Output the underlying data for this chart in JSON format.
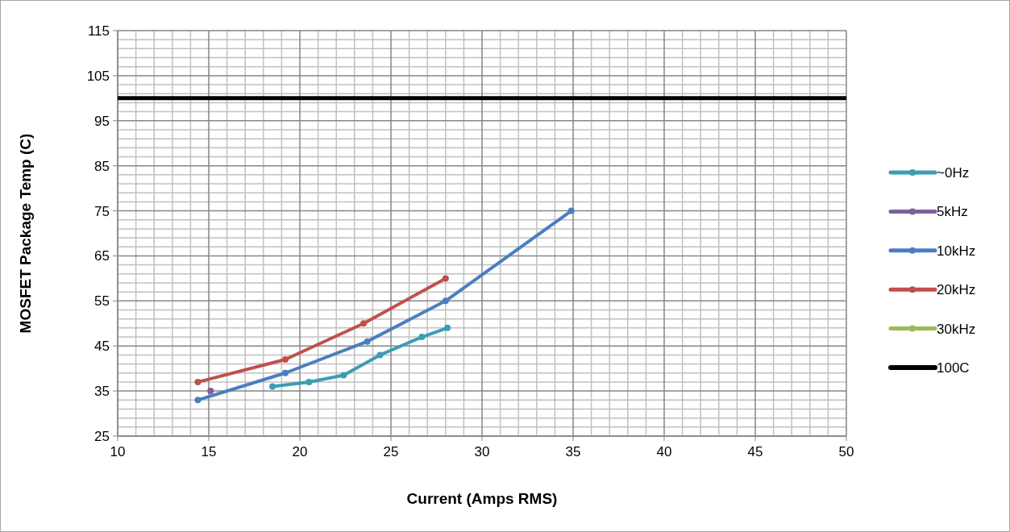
{
  "chart_data": {
    "type": "line",
    "xlabel": "Current (Amps RMS)",
    "ylabel": "MOSFET Package Temp (C)",
    "xlim": [
      10,
      50
    ],
    "xticks": [
      10,
      15,
      20,
      25,
      30,
      35,
      40,
      45,
      50
    ],
    "ylim": [
      25,
      115
    ],
    "yticks": [
      25,
      35,
      45,
      55,
      65,
      75,
      85,
      95,
      105,
      115
    ],
    "grid": true,
    "legend": "right",
    "marker": "circle",
    "line_style": "solid",
    "series": [
      {
        "name": "~0Hz",
        "color": "#3b9db3",
        "x": [
          18.5,
          20.5,
          22.4,
          24.4,
          26.7,
          28.1
        ],
        "values": [
          36,
          37,
          38.5,
          43,
          47,
          49
        ]
      },
      {
        "name": "5kHz",
        "color": "#7f5fa0",
        "x": [
          15.1
        ],
        "values": [
          35
        ]
      },
      {
        "name": "10kHz",
        "color": "#4a7fbf",
        "x": [
          14.4,
          19.2,
          23.7,
          28,
          34.9
        ],
        "values": [
          33,
          39,
          46,
          55,
          75
        ]
      },
      {
        "name": "20kHz",
        "color": "#c0504d",
        "x": [
          14.4,
          19.2,
          23.5,
          28
        ],
        "values": [
          37,
          42,
          50,
          60
        ]
      },
      {
        "name": "30kHz",
        "color": "#9bbb59"
      }
    ],
    "ref_lines": [
      {
        "axis": "y",
        "value": 100,
        "label": "100C",
        "color": "#000000"
      }
    ]
  }
}
